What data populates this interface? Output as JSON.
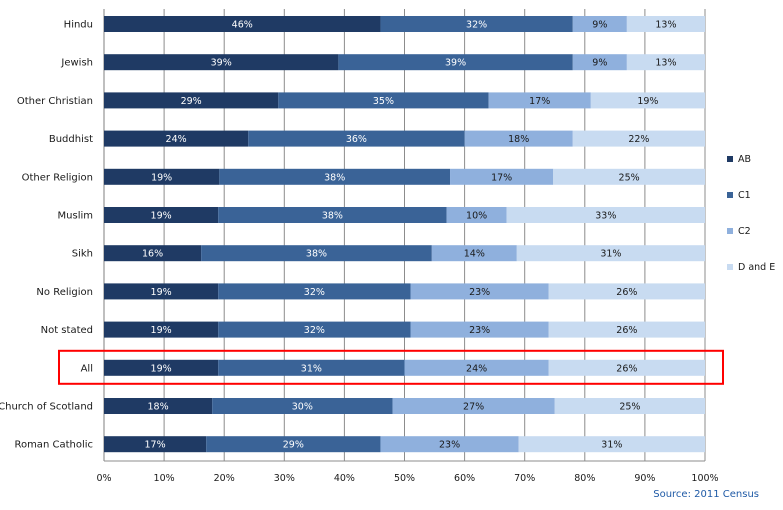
{
  "chart_data": {
    "type": "bar",
    "orientation": "horizontal",
    "stacked": true,
    "percent_stacked": true,
    "categories": [
      "Hindu",
      "Jewish",
      "Other Christian",
      "Buddhist",
      "Other Religion",
      "Muslim",
      "Sikh",
      "No Religion",
      "Not stated",
      "All",
      "Church of Scotland",
      "Roman Catholic"
    ],
    "series": [
      {
        "name": "AB",
        "color": "#1f3a64",
        "values": [
          46,
          39,
          29,
          24,
          19,
          19,
          16,
          19,
          19,
          19,
          18,
          17
        ]
      },
      {
        "name": "C1",
        "color": "#3a6397",
        "values": [
          32,
          39,
          35,
          36,
          38,
          38,
          38,
          32,
          32,
          31,
          30,
          29
        ]
      },
      {
        "name": "C2",
        "color": "#8fb0dd",
        "values": [
          9,
          9,
          17,
          18,
          17,
          10,
          14,
          23,
          23,
          24,
          27,
          23
        ]
      },
      {
        "name": "D and E",
        "color": "#c8dbf1",
        "values": [
          13,
          13,
          19,
          22,
          25,
          33,
          31,
          26,
          26,
          26,
          25,
          31
        ]
      }
    ],
    "value_labels": [
      [
        "46%",
        "32%",
        "9%",
        "13%"
      ],
      [
        "39%",
        "39%",
        "9%",
        "13%"
      ],
      [
        "29%",
        "35%",
        "17%",
        "19%"
      ],
      [
        "24%",
        "36%",
        "18%",
        "22%"
      ],
      [
        "19%",
        "38%",
        "17%",
        "25%"
      ],
      [
        "19%",
        "38%",
        "10%",
        "33%"
      ],
      [
        "16%",
        "38%",
        "14%",
        "31%"
      ],
      [
        "19%",
        "32%",
        "23%",
        "26%"
      ],
      [
        "19%",
        "32%",
        "23%",
        "26%"
      ],
      [
        "19%",
        "31%",
        "24%",
        "26%"
      ],
      [
        "18%",
        "30%",
        "27%",
        "25%"
      ],
      [
        "17%",
        "29%",
        "23%",
        "31%"
      ]
    ],
    "x_ticks": [
      "0%",
      "10%",
      "20%",
      "30%",
      "40%",
      "50%",
      "60%",
      "70%",
      "80%",
      "90%",
      "100%"
    ],
    "xlim": [
      0,
      100
    ],
    "grid": "vertical",
    "legend_position": "right",
    "highlighted_category": "All",
    "highlight_color": "#ff0000",
    "source": "Source: 2011 Census"
  }
}
